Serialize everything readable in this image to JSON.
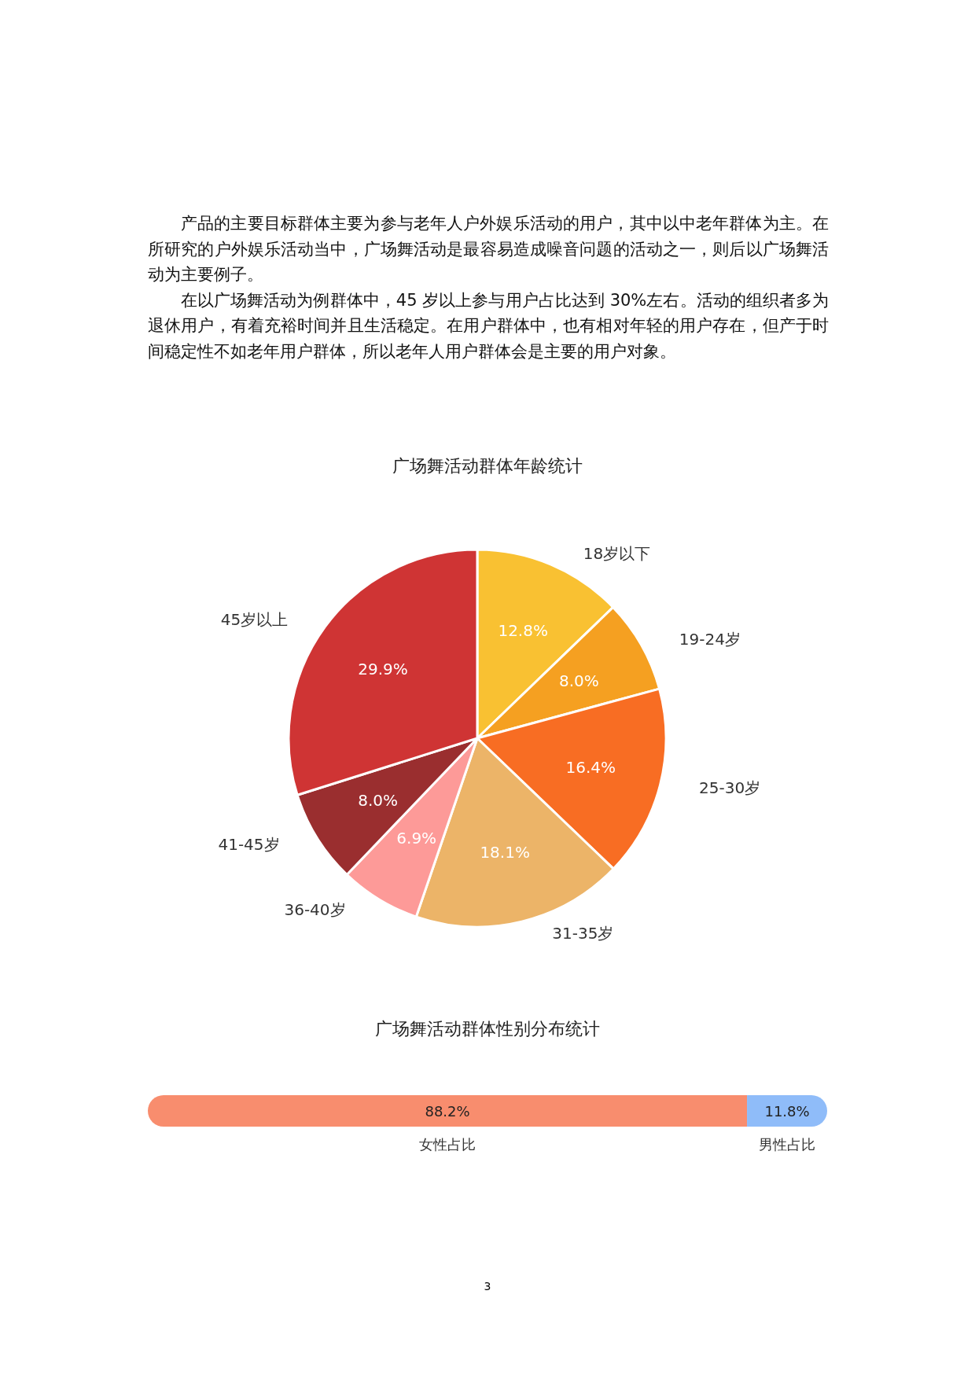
{
  "chart_data": [
    {
      "type": "pie",
      "title": "广场舞活动群体年龄统计",
      "annotations": [
        "产品的主要目标群体主要为参与老年人户外娱乐活动的用户，其中以中老年群体为主。在所研究的户外娱乐活动当中，广场舞活动是最容易造成噪音问题的活动之一，则后以广场舞活动为主要例子。",
        "在以广场舞活动为例群体中，45 岁以上参与用户占比达到 30%左右。活动的组织者多为退休用户，有着充裕时间并且生活稳定。在用户群体中，也有相对年轻的用户存在，但产于时间稳定性不如老年用户群体，所以老年人用户群体会是主要的用户对象。"
      ],
      "categories": [
        "18岁以下",
        "19-24岁",
        "25-30岁",
        "31-35岁",
        "36-40岁",
        "41-45岁",
        "45岁以上"
      ],
      "values": [
        12.8,
        8.0,
        16.4,
        18.1,
        6.9,
        8.0,
        29.9
      ],
      "value_labels": [
        "12.8%",
        "8.0%",
        "16.4%",
        "18.1%",
        "6.9%",
        "8.0%",
        "29.9%"
      ],
      "colors": [
        "#f9c132",
        "#f5a021",
        "#f86d23",
        "#ecb468",
        "#fd9a98",
        "#9a2e2f",
        "#cf3434"
      ]
    },
    {
      "type": "bar",
      "title": "广场舞活动群体性别分布统计",
      "orientation": "horizontal",
      "stacked": true,
      "annotations": [
        "3"
      ],
      "categories": [
        null
      ],
      "series": [
        {
          "name": "女性占比",
          "color": "#f88d6e",
          "values": [
            88.2
          ],
          "value_labels": [
            "88.2%"
          ]
        },
        {
          "name": "男性占比",
          "color": "#8fbcf9",
          "values": [
            11.8
          ],
          "value_labels": [
            "11.8%"
          ]
        }
      ]
    }
  ]
}
